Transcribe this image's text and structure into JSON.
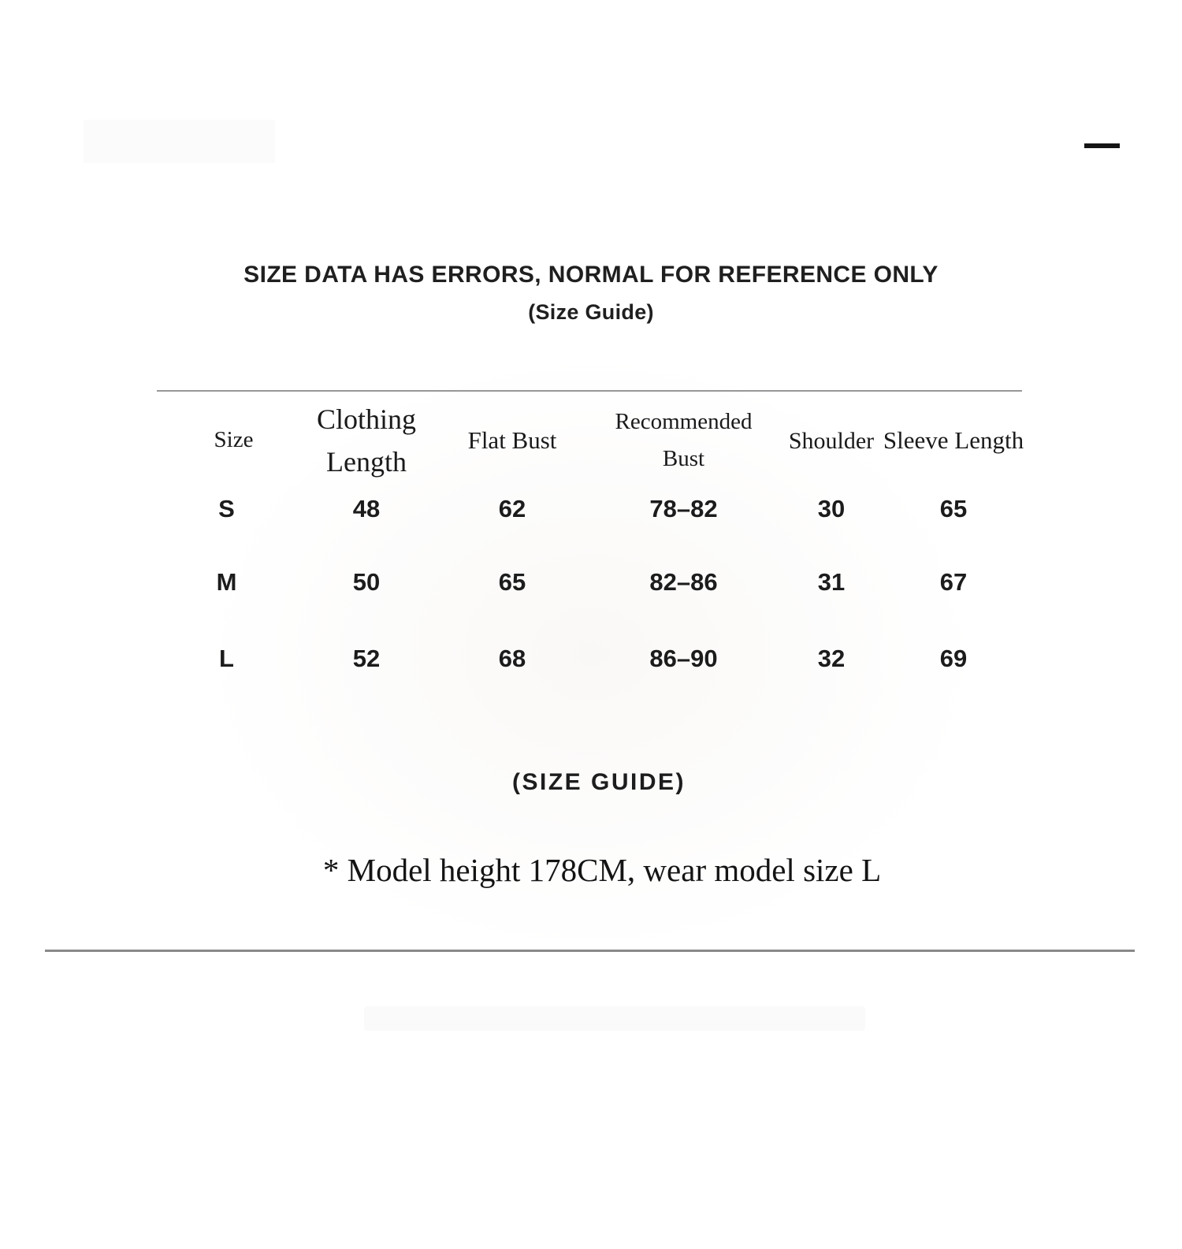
{
  "header": {
    "title": "SIZE DATA HAS ERRORS, NORMAL FOR REFERENCE ONLY",
    "subtitle": "(Size Guide)"
  },
  "size_table": {
    "columns": [
      "Size",
      "Clothing Length",
      "Flat Bust",
      "Recommended Bust",
      "Shoulder",
      "Sleeve Length"
    ],
    "rows": [
      [
        "S",
        "48",
        "62",
        "78–82",
        "30",
        "65"
      ],
      [
        "M",
        "50",
        "65",
        "82–86",
        "31",
        "67"
      ],
      [
        "L",
        "52",
        "68",
        "86–90",
        "32",
        "69"
      ]
    ]
  },
  "footer": {
    "section_label": "(SIZE GUIDE)",
    "model_note": "* Model height 178CM, wear model size L"
  },
  "colors": {
    "text": "#1b1b1b",
    "divider_top": "#979797",
    "divider_bottom": "#898989",
    "dash": "#151515"
  }
}
